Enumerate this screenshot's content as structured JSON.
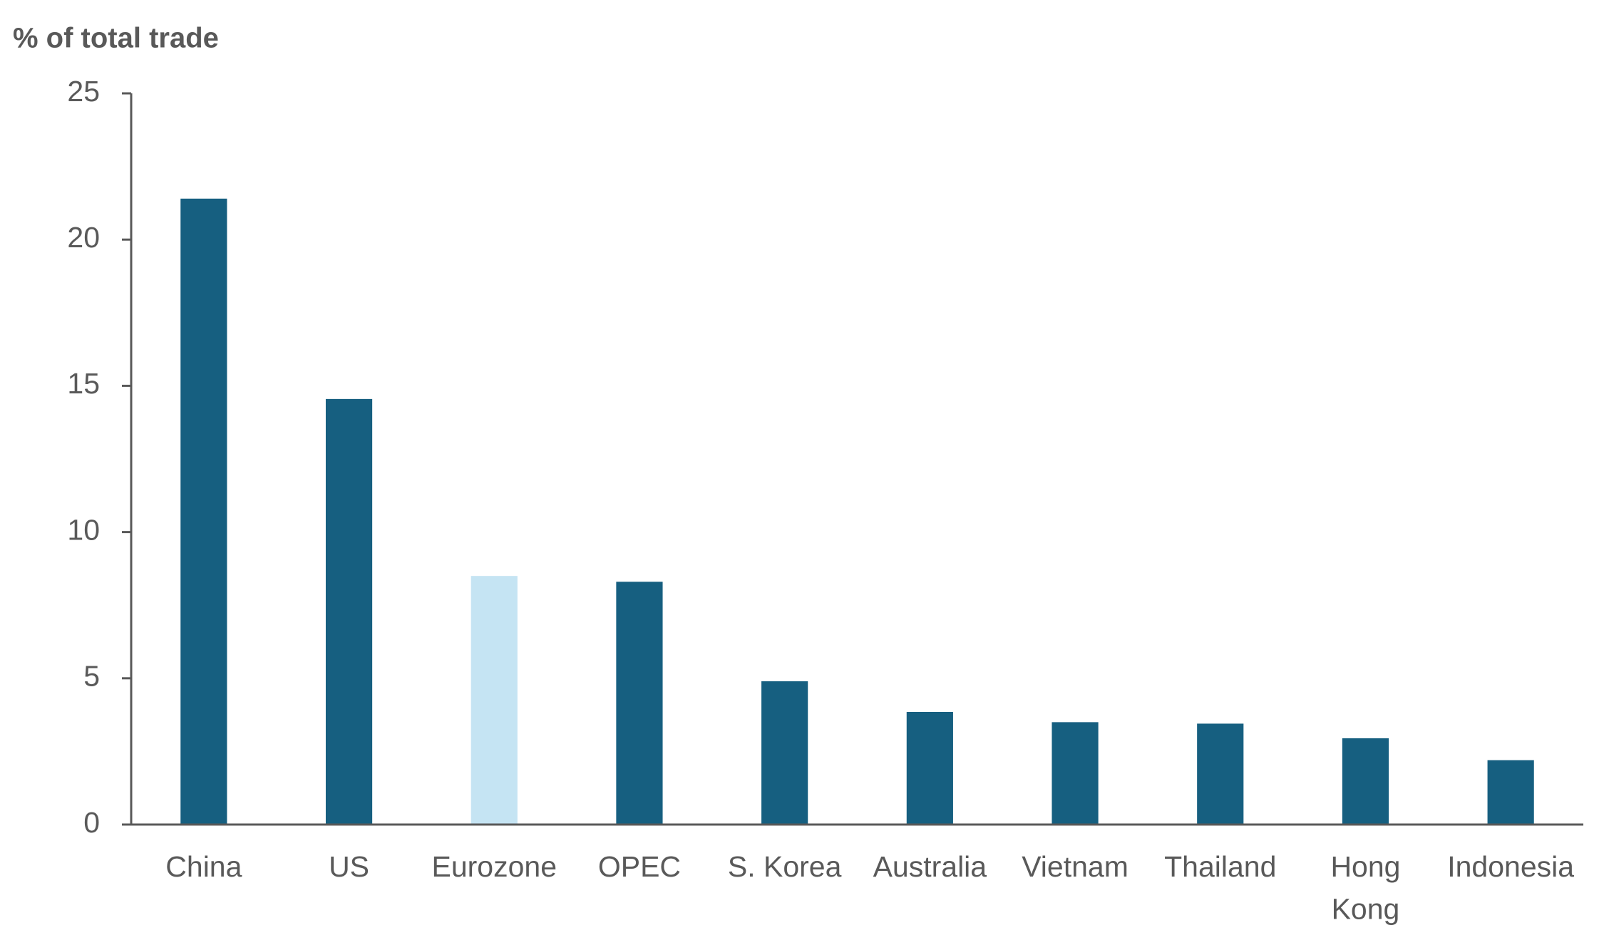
{
  "chart_data": {
    "type": "bar",
    "y_axis_label": "% of total trade",
    "categories": [
      "China",
      "US",
      "Eurozone",
      "OPEC",
      "S. Korea",
      "Australia",
      "Vietnam",
      "Thailand",
      "Hong\nKong",
      "Indonesia"
    ],
    "values": [
      21.4,
      14.55,
      8.5,
      8.3,
      4.9,
      3.85,
      3.5,
      3.45,
      2.95,
      2.2
    ],
    "colors": [
      "#165f80",
      "#165f80",
      "#c5e4f3",
      "#165f80",
      "#165f80",
      "#165f80",
      "#165f80",
      "#165f80",
      "#165f80",
      "#165f80"
    ],
    "ylim": [
      0,
      25
    ],
    "yticks": [
      0,
      5,
      10,
      15,
      20,
      25
    ],
    "grid": false
  }
}
